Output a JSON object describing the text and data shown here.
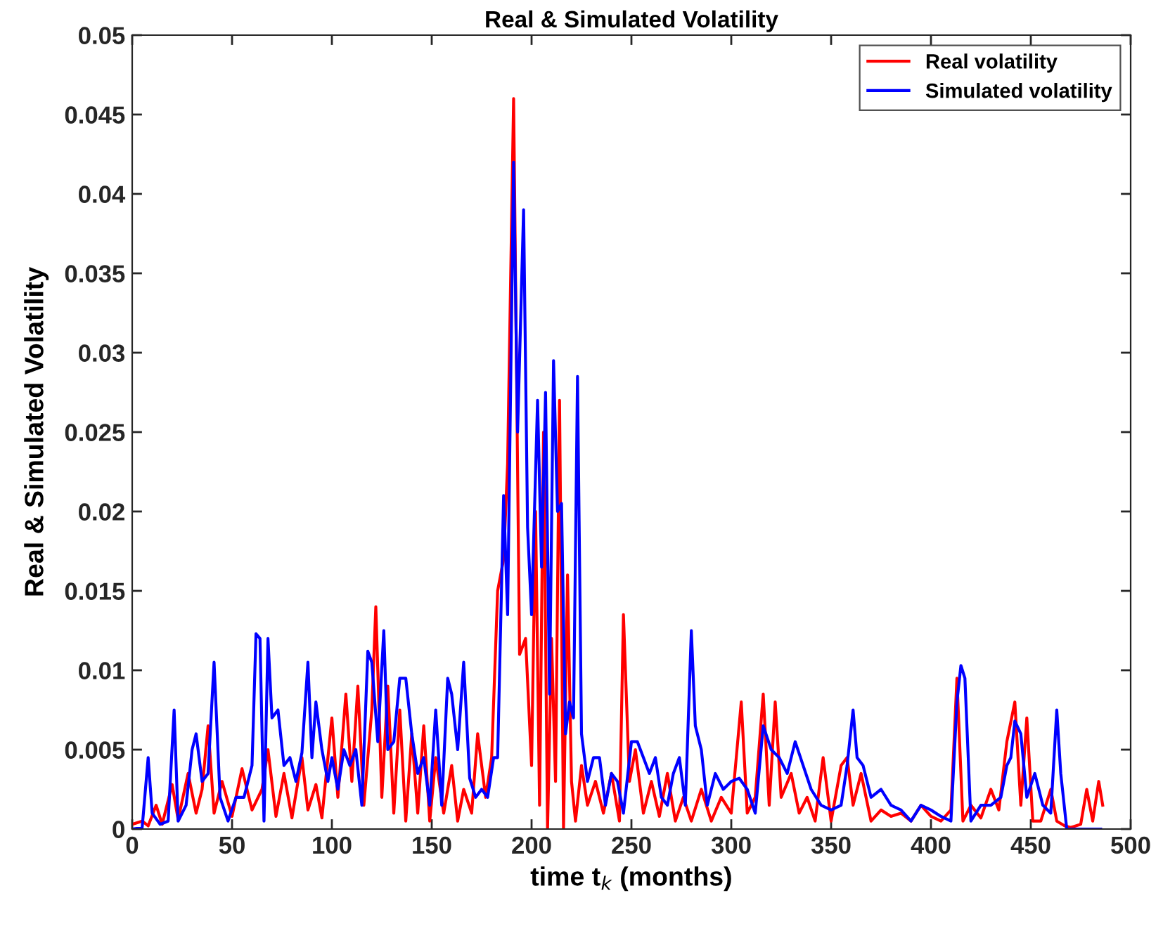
{
  "chart_data": {
    "type": "line",
    "title": "Real & Simulated Volatility",
    "xlabel": "time t$_{k}$ (months)",
    "ylabel": "Real & Simulated Volatility",
    "xlim": [
      0,
      500
    ],
    "xticks": [
      0,
      50,
      100,
      150,
      200,
      250,
      300,
      350,
      400,
      450,
      500
    ],
    "ylim": [
      0,
      0.05
    ],
    "yticks": [
      0,
      0.005,
      0.01,
      0.015,
      0.02,
      0.025,
      0.03,
      0.035,
      0.04,
      0.045,
      0.05
    ],
    "grid": false,
    "legend": "top right",
    "marker": "none",
    "line_style": "solid",
    "series": [
      {
        "name": "Real volatility",
        "color": "#ff0000",
        "x": [
          0,
          5,
          8,
          12,
          15,
          20,
          23,
          28,
          32,
          35,
          38,
          41,
          45,
          50,
          55,
          60,
          65,
          68,
          72,
          76,
          80,
          85,
          88,
          92,
          95,
          100,
          103,
          107,
          110,
          113,
          116,
          120,
          122,
          125,
          128,
          131,
          134,
          137,
          140,
          143,
          146,
          149,
          152,
          156,
          160,
          163,
          166,
          170,
          173,
          177,
          180,
          183,
          186,
          188,
          191,
          194,
          197,
          200,
          202,
          204,
          206,
          208,
          210,
          212,
          214,
          216,
          218,
          220,
          222,
          225,
          228,
          232,
          236,
          240,
          244,
          246,
          249,
          252,
          256,
          260,
          264,
          268,
          272,
          276,
          280,
          285,
          290,
          295,
          300,
          305,
          308,
          312,
          316,
          319,
          322,
          325,
          330,
          334,
          338,
          342,
          346,
          350,
          355,
          358,
          361,
          365,
          370,
          375,
          380,
          385,
          390,
          395,
          400,
          405,
          410,
          413,
          416,
          420,
          425,
          430,
          434,
          438,
          442,
          445,
          448,
          451,
          455,
          460,
          463,
          467,
          470,
          475,
          478,
          481,
          484,
          486
        ],
        "values": [
          0.0003,
          0.0005,
          0.0002,
          0.0015,
          0.0003,
          0.0028,
          0.0006,
          0.0035,
          0.001,
          0.0025,
          0.0065,
          0.001,
          0.003,
          0.0008,
          0.0038,
          0.0012,
          0.0025,
          0.005,
          0.0008,
          0.0035,
          0.0007,
          0.0045,
          0.0012,
          0.0028,
          0.0007,
          0.007,
          0.002,
          0.0085,
          0.003,
          0.009,
          0.0015,
          0.0075,
          0.014,
          0.002,
          0.009,
          0.001,
          0.0075,
          0.0005,
          0.006,
          0.001,
          0.0065,
          0.0005,
          0.0045,
          0.001,
          0.004,
          0.0005,
          0.0025,
          0.001,
          0.006,
          0.002,
          0.0045,
          0.015,
          0.017,
          0.023,
          0.046,
          0.011,
          0.012,
          0.004,
          0.02,
          0.0015,
          0.025,
          0.0,
          0.012,
          0.003,
          0.027,
          0.0,
          0.016,
          0.003,
          0.0005,
          0.004,
          0.0015,
          0.003,
          0.001,
          0.0035,
          0.0005,
          0.0135,
          0.003,
          0.005,
          0.001,
          0.003,
          0.0008,
          0.0035,
          0.0005,
          0.002,
          0.0005,
          0.0025,
          0.0005,
          0.002,
          0.001,
          0.008,
          0.001,
          0.002,
          0.0085,
          0.0015,
          0.008,
          0.002,
          0.0035,
          0.001,
          0.002,
          0.0005,
          0.0045,
          0.0005,
          0.004,
          0.0045,
          0.0015,
          0.0035,
          0.0005,
          0.0012,
          0.0008,
          0.001,
          0.0005,
          0.0015,
          0.0008,
          0.0005,
          0.0012,
          0.0095,
          0.0005,
          0.0015,
          0.0007,
          0.0025,
          0.0012,
          0.0055,
          0.008,
          0.0015,
          0.007,
          0.0005,
          0.0005,
          0.0025,
          0.0005,
          0.0002,
          0.0001,
          0.0003,
          0.0025,
          0.0005,
          0.003,
          0.0015
        ]
      },
      {
        "name": "Simulated volatility",
        "color": "#0000ff",
        "x": [
          0,
          5,
          8,
          10,
          14,
          18,
          21,
          23,
          27,
          30,
          32,
          35,
          38,
          41,
          44,
          48,
          52,
          56,
          60,
          62,
          64,
          66,
          68,
          70,
          73,
          76,
          79,
          82,
          85,
          88,
          90,
          92,
          95,
          98,
          100,
          103,
          106,
          109,
          112,
          115,
          118,
          120,
          123,
          126,
          128,
          131,
          134,
          137,
          140,
          143,
          146,
          149,
          152,
          155,
          158,
          160,
          163,
          166,
          169,
          172,
          175,
          178,
          181,
          183,
          186,
          188,
          191,
          193,
          196,
          198,
          200,
          203,
          205,
          207,
          209,
          211,
          213,
          215,
          217,
          219,
          221,
          223,
          225,
          228,
          231,
          234,
          237,
          240,
          243,
          246,
          250,
          253,
          256,
          259,
          262,
          265,
          268,
          271,
          274,
          277,
          280,
          282,
          285,
          288,
          292,
          296,
          300,
          304,
          308,
          312,
          316,
          320,
          324,
          328,
          332,
          336,
          340,
          345,
          350,
          355,
          358,
          361,
          363,
          366,
          370,
          375,
          380,
          385,
          390,
          395,
          400,
          405,
          410,
          413,
          415,
          417,
          420,
          425,
          430,
          435,
          438,
          440,
          442,
          445,
          448,
          452,
          456,
          460,
          463,
          465,
          468,
          475,
          480,
          485
        ],
        "values": [
          0.0,
          0.0001,
          0.0045,
          0.001,
          0.0003,
          0.0005,
          0.0075,
          0.0005,
          0.0015,
          0.005,
          0.006,
          0.003,
          0.0035,
          0.0105,
          0.002,
          0.0005,
          0.002,
          0.002,
          0.004,
          0.0123,
          0.012,
          0.0005,
          0.012,
          0.007,
          0.0075,
          0.004,
          0.0045,
          0.003,
          0.0048,
          0.0105,
          0.0045,
          0.008,
          0.005,
          0.003,
          0.0045,
          0.0025,
          0.005,
          0.004,
          0.005,
          0.0015,
          0.0112,
          0.0105,
          0.0055,
          0.0125,
          0.005,
          0.0055,
          0.0095,
          0.0095,
          0.006,
          0.0035,
          0.0045,
          0.0015,
          0.0075,
          0.0015,
          0.0095,
          0.0085,
          0.005,
          0.0105,
          0.0032,
          0.002,
          0.0025,
          0.002,
          0.0045,
          0.0045,
          0.021,
          0.0135,
          0.042,
          0.025,
          0.039,
          0.019,
          0.0135,
          0.027,
          0.0165,
          0.0275,
          0.0085,
          0.0295,
          0.02,
          0.0205,
          0.006,
          0.008,
          0.007,
          0.0285,
          0.006,
          0.003,
          0.0045,
          0.0045,
          0.0015,
          0.0035,
          0.003,
          0.001,
          0.0055,
          0.0055,
          0.0045,
          0.0035,
          0.0045,
          0.002,
          0.0015,
          0.0035,
          0.0045,
          0.0015,
          0.0125,
          0.0065,
          0.005,
          0.0015,
          0.0035,
          0.0025,
          0.003,
          0.0032,
          0.0025,
          0.001,
          0.0065,
          0.005,
          0.0045,
          0.0035,
          0.0055,
          0.004,
          0.0025,
          0.0015,
          0.0012,
          0.0015,
          0.004,
          0.0075,
          0.0045,
          0.004,
          0.002,
          0.0025,
          0.0015,
          0.0012,
          0.0005,
          0.0015,
          0.0012,
          0.0008,
          0.0005,
          0.008,
          0.0103,
          0.0095,
          0.0005,
          0.0015,
          0.0015,
          0.002,
          0.004,
          0.0045,
          0.0068,
          0.006,
          0.002,
          0.0035,
          0.0015,
          0.001,
          0.0075,
          0.0035,
          0.0,
          0.0,
          0.0,
          0.0
        ]
      }
    ]
  }
}
